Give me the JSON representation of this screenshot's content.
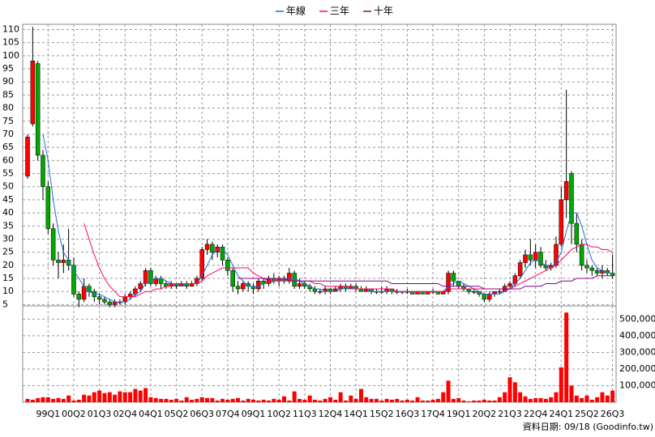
{
  "chart_data": {
    "type": "candlestick",
    "source": "資料日期: 09/18  (Goodinfo.tw)",
    "categories": [
      null,
      null,
      null,
      null,
      "99Q1",
      null,
      null,
      null,
      null,
      "00Q2",
      null,
      null,
      null,
      null,
      "01Q3",
      null,
      null,
      null,
      null,
      "02Q4",
      null,
      null,
      null,
      null,
      "04Q1",
      null,
      null,
      null,
      null,
      "05Q2",
      null,
      null,
      null,
      null,
      "06Q3",
      null,
      null,
      null,
      null,
      "07Q4",
      null,
      null,
      null,
      null,
      "09Q1",
      null,
      null,
      null,
      null,
      "10Q2",
      null,
      null,
      null,
      null,
      "11Q3",
      null,
      null,
      null,
      null,
      "12Q4",
      null,
      null,
      null,
      null,
      "14Q1",
      null,
      null,
      null,
      null,
      "15Q2",
      null,
      null,
      null,
      null,
      "16Q3",
      null,
      null,
      null,
      null,
      "17Q4",
      null,
      null,
      null,
      null,
      "19Q1",
      null,
      null,
      null,
      null,
      "20Q2",
      null,
      null,
      null,
      null,
      "21Q3",
      null,
      null,
      null,
      null,
      "22Q4",
      null,
      null,
      null,
      null,
      "24Q1",
      null,
      null,
      null,
      null,
      "25Q2",
      null,
      null,
      null,
      null,
      "26Q3"
    ],
    "open": [
      54,
      74,
      97,
      62,
      50,
      34,
      22,
      21,
      22,
      20,
      9,
      7,
      12,
      10,
      8,
      7,
      6,
      5,
      6,
      6,
      8,
      9,
      11,
      13,
      18,
      13,
      15,
      13,
      12,
      13,
      12,
      13,
      12,
      13,
      15,
      26,
      28,
      25,
      27,
      22,
      18,
      12,
      11,
      13,
      12,
      11,
      14,
      13,
      15,
      14,
      15,
      14,
      17,
      12,
      13,
      12,
      11,
      10,
      10,
      11,
      10,
      11,
      12,
      11,
      12,
      11,
      10,
      11,
      10,
      10,
      10,
      11,
      10,
      10,
      10,
      10,
      9,
      10,
      9,
      10,
      10,
      9,
      10,
      17,
      14,
      12,
      11,
      10,
      10,
      9,
      7,
      9,
      10,
      10,
      12,
      13,
      16,
      21,
      24,
      22,
      25,
      20,
      19,
      20,
      28,
      45,
      55,
      36,
      28,
      20,
      19,
      18,
      17,
      18,
      17
    ],
    "high": [
      70,
      111,
      98,
      64,
      52,
      36,
      25,
      28,
      34,
      23,
      10,
      15,
      13,
      11,
      9,
      8,
      7,
      7,
      7,
      9,
      10,
      12,
      14,
      19,
      19,
      16,
      16,
      14,
      14,
      13,
      14,
      14,
      14,
      16,
      27,
      30,
      29,
      28,
      28,
      23,
      19,
      14,
      14,
      14,
      13,
      15,
      15,
      16,
      17,
      16,
      16,
      19,
      18,
      15,
      14,
      13,
      12,
      11,
      12,
      11,
      12,
      13,
      13,
      13,
      13,
      12,
      12,
      11,
      11,
      12,
      12,
      11,
      11,
      10,
      11,
      10,
      10,
      10,
      10,
      11,
      10,
      10,
      18,
      18,
      14,
      13,
      11,
      11,
      10,
      9,
      10,
      10,
      11,
      13,
      14,
      17,
      22,
      26,
      30,
      28,
      27,
      22,
      21,
      31,
      50,
      87,
      56,
      40,
      30,
      22,
      20,
      19,
      20,
      19,
      24
    ],
    "low": [
      53,
      73,
      60,
      45,
      32,
      20,
      15,
      17,
      18,
      8,
      4,
      6,
      8,
      6,
      5,
      5,
      4,
      4,
      5,
      5,
      7,
      8,
      10,
      12,
      12,
      12,
      11,
      11,
      11,
      11,
      12,
      11,
      12,
      12,
      14,
      24,
      22,
      23,
      20,
      16,
      10,
      9,
      10,
      10,
      9,
      10,
      11,
      12,
      13,
      12,
      13,
      13,
      11,
      11,
      11,
      10,
      9,
      9,
      9,
      9,
      10,
      10,
      10,
      11,
      10,
      10,
      10,
      9,
      9,
      9,
      9,
      9,
      9,
      9,
      9,
      9,
      9,
      9,
      9,
      9,
      9,
      9,
      9,
      12,
      11,
      10,
      9,
      9,
      8,
      6,
      6,
      8,
      9,
      10,
      11,
      12,
      15,
      19,
      20,
      19,
      19,
      18,
      18,
      19,
      27,
      38,
      28,
      25,
      18,
      17,
      16,
      16,
      15,
      16,
      15
    ],
    "close": [
      69,
      98,
      62,
      50,
      34,
      22,
      21,
      22,
      20,
      9,
      7,
      12,
      10,
      8,
      7,
      6,
      5,
      6,
      6,
      8,
      9,
      11,
      13,
      18,
      13,
      15,
      13,
      12,
      13,
      12,
      13,
      12,
      13,
      15,
      26,
      28,
      25,
      27,
      22,
      18,
      12,
      11,
      13,
      12,
      11,
      14,
      13,
      15,
      14,
      15,
      14,
      17,
      12,
      13,
      12,
      11,
      10,
      10,
      11,
      10,
      11,
      12,
      11,
      12,
      11,
      10,
      11,
      10,
      10,
      10,
      11,
      10,
      10,
      10,
      10,
      9,
      10,
      9,
      10,
      10,
      9,
      10,
      17,
      14,
      12,
      11,
      10,
      10,
      9,
      7,
      9,
      10,
      10,
      12,
      13,
      16,
      21,
      24,
      22,
      25,
      20,
      19,
      20,
      28,
      45,
      52,
      36,
      28,
      20,
      19,
      18,
      17,
      18,
      17,
      16
    ],
    "up_color": "#ff0000",
    "down_color": "#00a800",
    "series": [
      {
        "name": "年線",
        "color": "#1e6fd9",
        "values": [
          null,
          null,
          null,
          70,
          60,
          45,
          33,
          25,
          22,
          18,
          15,
          12,
          10,
          9,
          9,
          8,
          7,
          6,
          6,
          6,
          7,
          9,
          10,
          13,
          14,
          15,
          15,
          14,
          13,
          13,
          12,
          13,
          13,
          13,
          16,
          20,
          24,
          26,
          26,
          24,
          20,
          16,
          14,
          12,
          12,
          12,
          13,
          13,
          14,
          14,
          15,
          15,
          15,
          14,
          13,
          12,
          11,
          11,
          10,
          10,
          10,
          11,
          11,
          11,
          11,
          11,
          11,
          10,
          10,
          10,
          10,
          10,
          10,
          10,
          10,
          10,
          10,
          10,
          10,
          10,
          10,
          10,
          12,
          13,
          14,
          13,
          12,
          11,
          10,
          9,
          9,
          9,
          9,
          10,
          11,
          13,
          15,
          18,
          21,
          22,
          21,
          20,
          19,
          21,
          25,
          33,
          40,
          40,
          35,
          28,
          22,
          19,
          18,
          17,
          17
        ]
      },
      {
        "name": "三年",
        "color": "#ff0066",
        "values": [
          null,
          null,
          null,
          null,
          null,
          null,
          null,
          null,
          null,
          null,
          null,
          36,
          30,
          24,
          19,
          15,
          12,
          10,
          8,
          8,
          8,
          8,
          9,
          10,
          10,
          11,
          11,
          12,
          12,
          13,
          13,
          13,
          13,
          13,
          14,
          16,
          17,
          18,
          19,
          19,
          19,
          19,
          19,
          19,
          17,
          16,
          15,
          14,
          14,
          14,
          14,
          14,
          14,
          14,
          14,
          14,
          13,
          13,
          12,
          12,
          12,
          12,
          12,
          12,
          11,
          11,
          11,
          11,
          11,
          11,
          11,
          11,
          10,
          10,
          10,
          10,
          10,
          10,
          10,
          10,
          10,
          10,
          11,
          11,
          11,
          11,
          11,
          11,
          11,
          11,
          11,
          11,
          11,
          11,
          11,
          12,
          13,
          14,
          15,
          16,
          17,
          18,
          19,
          20,
          22,
          24,
          26,
          27,
          28,
          28,
          27,
          27,
          26,
          26,
          25
        ]
      },
      {
        "name": "十年",
        "color": "#8b008b",
        "values": [
          null,
          null,
          null,
          null,
          null,
          null,
          null,
          null,
          null,
          null,
          null,
          null,
          null,
          null,
          null,
          null,
          null,
          null,
          null,
          null,
          null,
          null,
          null,
          null,
          null,
          null,
          null,
          null,
          null,
          null,
          null,
          null,
          null,
          null,
          null,
          null,
          null,
          null,
          null,
          null,
          null,
          15,
          15,
          15,
          15,
          15,
          15,
          15,
          15,
          15,
          15,
          14,
          14,
          14,
          14,
          14,
          14,
          14,
          14,
          14,
          14,
          14,
          14,
          14,
          14,
          14,
          14,
          14,
          14,
          14,
          14,
          13,
          13,
          13,
          13,
          13,
          13,
          13,
          13,
          13,
          13,
          12,
          12,
          12,
          12,
          12,
          12,
          12,
          12,
          11,
          11,
          11,
          11,
          11,
          11,
          11,
          11,
          12,
          12,
          12,
          12,
          13,
          13,
          13,
          14,
          14,
          14,
          15,
          15,
          15,
          15,
          16,
          16,
          16,
          16
        ]
      }
    ],
    "ylim": [
      4.5,
      112
    ],
    "yticks": [
      5,
      10,
      15,
      20,
      25,
      30,
      35,
      40,
      45,
      50,
      55,
      60,
      65,
      70,
      75,
      80,
      85,
      90,
      95,
      100,
      105,
      110
    ],
    "volume": {
      "color": "#ff0000",
      "values": [
        20000,
        15000,
        25000,
        30000,
        30000,
        20000,
        25000,
        20000,
        40000,
        10000,
        15000,
        45000,
        40000,
        60000,
        70000,
        55000,
        60000,
        45000,
        65000,
        60000,
        60000,
        80000,
        70000,
        85000,
        30000,
        25000,
        20000,
        20000,
        15000,
        20000,
        10000,
        30000,
        15000,
        20000,
        30000,
        25000,
        25000,
        10000,
        20000,
        15000,
        20000,
        25000,
        10000,
        20000,
        15000,
        10000,
        15000,
        10000,
        20000,
        15000,
        35000,
        10000,
        65000,
        20000,
        15000,
        40000,
        15000,
        10000,
        20000,
        30000,
        15000,
        60000,
        10000,
        40000,
        20000,
        80000,
        30000,
        20000,
        20000,
        10000,
        20000,
        15000,
        20000,
        10000,
        15000,
        10000,
        30000,
        10000,
        10000,
        15000,
        20000,
        60000,
        130000,
        20000,
        25000,
        10000,
        5000,
        10000,
        10000,
        15000,
        10000,
        10000,
        30000,
        60000,
        150000,
        120000,
        60000,
        35000,
        20000,
        25000,
        25000,
        20000,
        30000,
        60000,
        210000,
        540000,
        100000,
        40000,
        25000,
        40000,
        15000,
        30000,
        60000,
        40000,
        70000
      ]
    },
    "y2lim": [
      0,
      580000
    ],
    "y2ticks": [
      {
        "value": 100000,
        "label": "100,000"
      },
      {
        "value": 200000,
        "label": "200,000"
      },
      {
        "value": 300000,
        "label": "300,000"
      },
      {
        "value": 400000,
        "label": "400,000"
      },
      {
        "value": 500000,
        "label": "500,000"
      }
    ],
    "grid": true
  }
}
